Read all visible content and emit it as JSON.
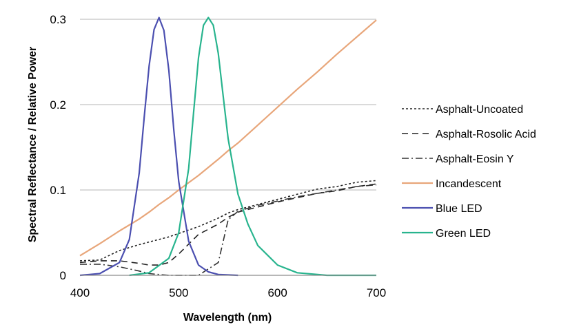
{
  "chart_data": {
    "type": "line",
    "title": "",
    "xlabel": "Wavelength (nm)",
    "ylabel": "Spectral Reflectance / Relative Power",
    "xlim": [
      400,
      700
    ],
    "ylim": [
      0,
      0.3
    ],
    "xticks": [
      "400",
      "500",
      "600",
      "700"
    ],
    "yticks": [
      "0",
      "0.1",
      "0.2",
      "0.3"
    ],
    "grid": "horizontal",
    "legend_position": "right",
    "x": [
      400,
      420,
      440,
      460,
      470,
      480,
      490,
      500,
      520,
      540,
      550,
      560,
      580,
      600,
      620,
      640,
      660,
      680,
      700
    ],
    "series": [
      {
        "name": "Asphalt-Uncoated",
        "color": "#222222",
        "dash": "3,3",
        "values": [
          0.017,
          0.018,
          0.029,
          0.036,
          0.039,
          0.042,
          0.045,
          0.049,
          0.057,
          0.067,
          0.073,
          0.077,
          0.083,
          0.089,
          0.095,
          0.101,
          0.104,
          0.109,
          0.111
        ]
      },
      {
        "name": "Asphalt-Rosolic Acid",
        "color": "#222222",
        "dash": "9,6",
        "values": [
          0.015,
          0.017,
          0.017,
          0.014,
          0.012,
          0.012,
          0.015,
          0.025,
          0.048,
          0.06,
          0.068,
          0.074,
          0.08,
          0.086,
          0.091,
          0.096,
          0.099,
          0.104,
          0.107
        ]
      },
      {
        "name": "Asphalt-Eosin Y",
        "color": "#333333",
        "dash": "10,4,2,4",
        "values": [
          0.013,
          0.013,
          0.01,
          0.005,
          0.002,
          0.001,
          0.0,
          0.0,
          0.0,
          0.015,
          0.065,
          0.075,
          0.082,
          0.087,
          0.092,
          0.096,
          0.1,
          0.104,
          0.106
        ]
      },
      {
        "name": "Incandescent",
        "color": "#e8a67a",
        "dash": "",
        "values": [
          0.023,
          0.037,
          0.052,
          0.066,
          0.074,
          0.083,
          0.091,
          0.1,
          0.117,
          0.136,
          0.146,
          0.155,
          0.176,
          0.197,
          0.218,
          0.238,
          0.259,
          0.279,
          0.299
        ]
      },
      {
        "name": "Blue LED",
        "color": "#4b4fb0",
        "dash": "",
        "x": [
          400,
          420,
          440,
          450,
          460,
          465,
          470,
          475,
          480,
          485,
          490,
          495,
          500,
          510,
          520,
          530,
          540,
          560
        ],
        "values": [
          0.0,
          0.002,
          0.015,
          0.042,
          0.12,
          0.185,
          0.245,
          0.288,
          0.302,
          0.287,
          0.24,
          0.17,
          0.11,
          0.04,
          0.012,
          0.004,
          0.001,
          0.0
        ]
      },
      {
        "name": "Green LED",
        "color": "#28b48e",
        "dash": "",
        "x": [
          450,
          470,
          490,
          500,
          510,
          515,
          520,
          525,
          530,
          535,
          540,
          545,
          550,
          560,
          570,
          580,
          600,
          620,
          650,
          700
        ],
        "values": [
          0.0,
          0.003,
          0.02,
          0.05,
          0.125,
          0.19,
          0.255,
          0.293,
          0.302,
          0.293,
          0.26,
          0.21,
          0.16,
          0.095,
          0.06,
          0.035,
          0.012,
          0.003,
          0.0,
          0.0
        ]
      }
    ]
  }
}
